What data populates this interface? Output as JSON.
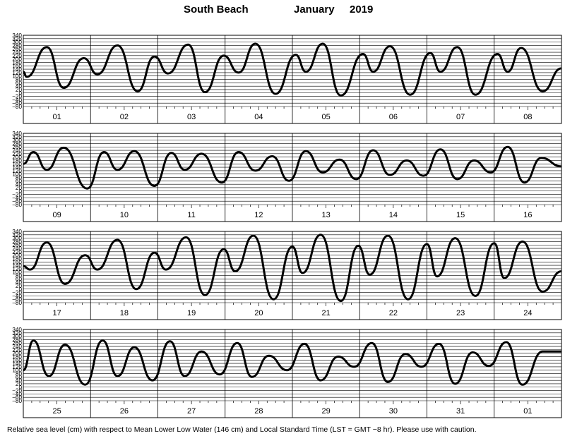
{
  "title": {
    "station": "South Beach",
    "month": "January",
    "year": "2019"
  },
  "footer": "Relative sea level (cm) with respect to Mean Lower Low Water (146 cm) and Local Standard Time (LST = GMT −8 hr). Please use with caution.",
  "chart_data": {
    "type": "line",
    "ylabel": "",
    "ylim": [
      -80,
      340
    ],
    "yticks": [
      "340",
      "320",
      "300",
      "280",
      "260",
      "240",
      "220",
      "200",
      "180",
      "160",
      "140",
      "120",
      "100",
      "80",
      "60",
      "40",
      "20",
      "0",
      "−20",
      "−40",
      "−60",
      "−80"
    ],
    "day_labels": [
      "01",
      "02",
      "03",
      "04",
      "05",
      "06",
      "07",
      "08",
      "09",
      "10",
      "11",
      "12",
      "13",
      "14",
      "15",
      "16",
      "17",
      "18",
      "19",
      "20",
      "21",
      "22",
      "23",
      "24",
      "25",
      "26",
      "27",
      "28",
      "29",
      "30",
      "31",
      "01"
    ],
    "panels": [
      {
        "days": [
          "01",
          "02",
          "03",
          "04",
          "05",
          "06",
          "07",
          "08"
        ],
        "points": [
          [
            0.0,
            125
          ],
          [
            0.05,
            95
          ],
          [
            0.35,
            270
          ],
          [
            0.6,
            30
          ],
          [
            0.9,
            205
          ],
          [
            1.1,
            110
          ],
          [
            1.4,
            280
          ],
          [
            1.7,
            10
          ],
          [
            1.95,
            215
          ],
          [
            2.15,
            115
          ],
          [
            2.45,
            285
          ],
          [
            2.7,
            5
          ],
          [
            2.98,
            220
          ],
          [
            3.2,
            120
          ],
          [
            3.45,
            290
          ],
          [
            3.75,
            -5
          ],
          [
            4.05,
            225
          ],
          [
            4.2,
            125
          ],
          [
            4.45,
            290
          ],
          [
            4.72,
            -15
          ],
          [
            5.05,
            230
          ],
          [
            5.2,
            125
          ],
          [
            5.45,
            275
          ],
          [
            5.75,
            -10
          ],
          [
            6.05,
            235
          ],
          [
            6.2,
            125
          ],
          [
            6.45,
            270
          ],
          [
            6.72,
            -10
          ],
          [
            7.05,
            230
          ],
          [
            7.2,
            125
          ],
          [
            7.4,
            265
          ],
          [
            7.72,
            10
          ],
          [
            8.0,
            145
          ]
        ]
      },
      {
        "days": [
          "09",
          "10",
          "11",
          "12",
          "13",
          "14",
          "15",
          "16"
        ],
        "points": [
          [
            0.0,
            160
          ],
          [
            0.15,
            230
          ],
          [
            0.35,
            125
          ],
          [
            0.6,
            255
          ],
          [
            0.95,
            15
          ],
          [
            1.2,
            230
          ],
          [
            1.4,
            125
          ],
          [
            1.65,
            235
          ],
          [
            1.95,
            30
          ],
          [
            2.2,
            225
          ],
          [
            2.4,
            125
          ],
          [
            2.65,
            220
          ],
          [
            2.95,
            50
          ],
          [
            3.2,
            230
          ],
          [
            3.45,
            120
          ],
          [
            3.7,
            205
          ],
          [
            3.95,
            60
          ],
          [
            4.2,
            235
          ],
          [
            4.45,
            110
          ],
          [
            4.7,
            185
          ],
          [
            4.95,
            70
          ],
          [
            5.2,
            240
          ],
          [
            5.45,
            95
          ],
          [
            5.7,
            180
          ],
          [
            5.95,
            90
          ],
          [
            6.2,
            245
          ],
          [
            6.45,
            70
          ],
          [
            6.7,
            180
          ],
          [
            6.95,
            110
          ],
          [
            7.2,
            260
          ],
          [
            7.45,
            50
          ],
          [
            7.7,
            195
          ],
          [
            8.0,
            145
          ]
        ]
      },
      {
        "days": [
          "17",
          "18",
          "19",
          "20",
          "21",
          "22",
          "23",
          "24"
        ],
        "points": [
          [
            0.0,
            135
          ],
          [
            0.1,
            115
          ],
          [
            0.35,
            275
          ],
          [
            0.62,
            30
          ],
          [
            0.92,
            200
          ],
          [
            1.1,
            115
          ],
          [
            1.4,
            290
          ],
          [
            1.68,
            0
          ],
          [
            1.95,
            215
          ],
          [
            2.12,
            115
          ],
          [
            2.42,
            305
          ],
          [
            2.7,
            -35
          ],
          [
            2.98,
            235
          ],
          [
            3.15,
            105
          ],
          [
            3.42,
            315
          ],
          [
            3.72,
            -60
          ],
          [
            4.0,
            250
          ],
          [
            4.15,
            95
          ],
          [
            4.42,
            320
          ],
          [
            4.72,
            -70
          ],
          [
            4.98,
            255
          ],
          [
            5.15,
            85
          ],
          [
            5.42,
            315
          ],
          [
            5.72,
            -60
          ],
          [
            6.0,
            265
          ],
          [
            6.15,
            75
          ],
          [
            6.42,
            300
          ],
          [
            6.72,
            -40
          ],
          [
            7.0,
            270
          ],
          [
            7.15,
            65
          ],
          [
            7.42,
            280
          ],
          [
            7.72,
            -15
          ],
          [
            8.0,
            105
          ]
        ]
      },
      {
        "days": [
          "25",
          "26",
          "27",
          "28",
          "29",
          "30",
          "31",
          "01"
        ],
        "points": [
          [
            0.0,
            100
          ],
          [
            0.15,
            275
          ],
          [
            0.38,
            65
          ],
          [
            0.62,
            250
          ],
          [
            0.92,
            15
          ],
          [
            1.18,
            275
          ],
          [
            1.4,
            65
          ],
          [
            1.65,
            235
          ],
          [
            1.92,
            40
          ],
          [
            2.18,
            270
          ],
          [
            2.4,
            65
          ],
          [
            2.65,
            210
          ],
          [
            2.92,
            75
          ],
          [
            3.18,
            260
          ],
          [
            3.4,
            60
          ],
          [
            3.65,
            185
          ],
          [
            3.92,
            100
          ],
          [
            4.18,
            255
          ],
          [
            4.42,
            40
          ],
          [
            4.68,
            180
          ],
          [
            4.92,
            120
          ],
          [
            5.18,
            260
          ],
          [
            5.42,
            30
          ],
          [
            5.68,
            195
          ],
          [
            5.92,
            120
          ],
          [
            6.18,
            255
          ],
          [
            6.42,
            20
          ],
          [
            6.68,
            205
          ],
          [
            6.92,
            125
          ],
          [
            7.18,
            265
          ],
          [
            7.42,
            15
          ],
          [
            7.72,
            210
          ],
          [
            8.0,
            210
          ]
        ]
      }
    ]
  }
}
